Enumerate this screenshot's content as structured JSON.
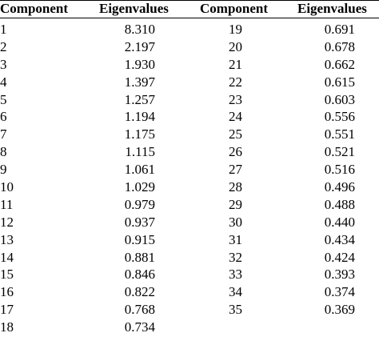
{
  "table": {
    "headers": [
      "Component",
      "Eigenvalues",
      "Component",
      "Eigenvalues"
    ],
    "left": [
      {
        "component": "1",
        "eigenvalue": "8.310"
      },
      {
        "component": "2",
        "eigenvalue": "2.197"
      },
      {
        "component": "3",
        "eigenvalue": "1.930"
      },
      {
        "component": "4",
        "eigenvalue": "1.397"
      },
      {
        "component": "5",
        "eigenvalue": "1.257"
      },
      {
        "component": "6",
        "eigenvalue": "1.194"
      },
      {
        "component": "7",
        "eigenvalue": "1.175"
      },
      {
        "component": "8",
        "eigenvalue": "1.115"
      },
      {
        "component": "9",
        "eigenvalue": "1.061"
      },
      {
        "component": "10",
        "eigenvalue": "1.029"
      },
      {
        "component": "11",
        "eigenvalue": "0.979"
      },
      {
        "component": "12",
        "eigenvalue": "0.937"
      },
      {
        "component": "13",
        "eigenvalue": "0.915"
      },
      {
        "component": "14",
        "eigenvalue": "0.881"
      },
      {
        "component": "15",
        "eigenvalue": "0.846"
      },
      {
        "component": "16",
        "eigenvalue": "0.822"
      },
      {
        "component": "17",
        "eigenvalue": "0.768"
      },
      {
        "component": "18",
        "eigenvalue": "0.734"
      }
    ],
    "right": [
      {
        "component": "19",
        "eigenvalue": "0.691"
      },
      {
        "component": "20",
        "eigenvalue": "0.678"
      },
      {
        "component": "21",
        "eigenvalue": "0.662"
      },
      {
        "component": "22",
        "eigenvalue": "0.615"
      },
      {
        "component": "23",
        "eigenvalue": "0.603"
      },
      {
        "component": "24",
        "eigenvalue": "0.556"
      },
      {
        "component": "25",
        "eigenvalue": "0.551"
      },
      {
        "component": "26",
        "eigenvalue": "0.521"
      },
      {
        "component": "27",
        "eigenvalue": "0.516"
      },
      {
        "component": "28",
        "eigenvalue": "0.496"
      },
      {
        "component": "29",
        "eigenvalue": "0.488"
      },
      {
        "component": "30",
        "eigenvalue": "0.440"
      },
      {
        "component": "31",
        "eigenvalue": "0.434"
      },
      {
        "component": "32",
        "eigenvalue": "0.424"
      },
      {
        "component": "33",
        "eigenvalue": "0.393"
      },
      {
        "component": "34",
        "eigenvalue": "0.374"
      },
      {
        "component": "35",
        "eigenvalue": "0.369"
      }
    ]
  }
}
